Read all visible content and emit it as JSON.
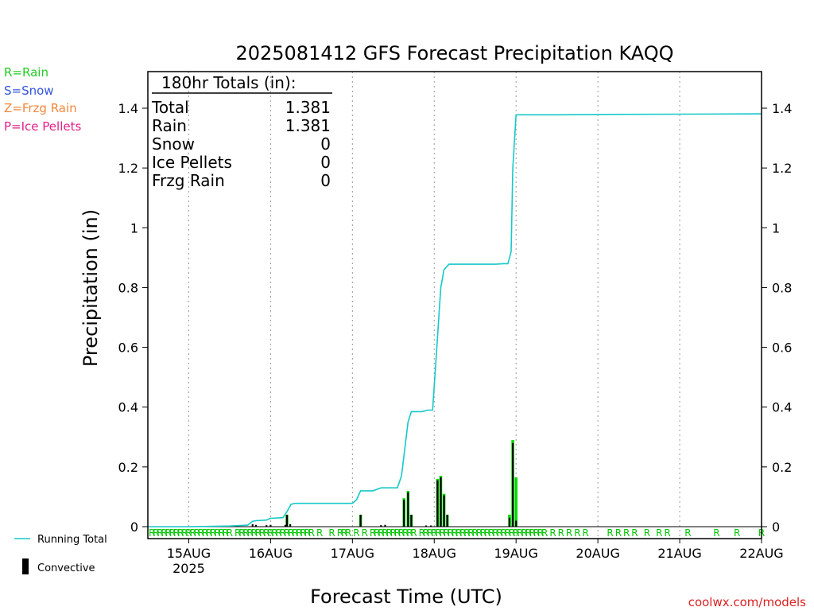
{
  "chart_data": {
    "type": "bar",
    "title": "2025081412 GFS Forecast Precipitation KAQQ",
    "xlabel": "Forecast Time (UTC)",
    "ylabel": "Precipitation (in)",
    "ylim": [
      0,
      1.5
    ],
    "y_ticks": [
      0,
      0.2,
      0.4,
      0.6,
      0.8,
      1,
      1.2,
      1.4
    ],
    "y_tick_labels": [
      "0",
      "0.2",
      "0.4",
      "0.6",
      "0.8",
      "1",
      "1.2",
      "1.4"
    ],
    "x_range_days": [
      14.5,
      22.0
    ],
    "x_ticks": [
      {
        "day": 15,
        "label": "15AUG",
        "sublabel": "2025"
      },
      {
        "day": 16,
        "label": "16AUG",
        "sublabel": ""
      },
      {
        "day": 17,
        "label": "17AUG",
        "sublabel": ""
      },
      {
        "day": 18,
        "label": "18AUG",
        "sublabel": ""
      },
      {
        "day": 19,
        "label": "19AUG",
        "sublabel": ""
      },
      {
        "day": 20,
        "label": "20AUG",
        "sublabel": ""
      },
      {
        "day": 21,
        "label": "21AUG",
        "sublabel": ""
      },
      {
        "day": 22,
        "label": "22AUG",
        "sublabel": ""
      }
    ],
    "grid": "vertical-dotted",
    "legend_position": "left",
    "series": [
      {
        "name": "Running Total",
        "type": "line",
        "color": "#17c8c8",
        "points": [
          [
            14.5,
            0
          ],
          [
            15.0,
            0
          ],
          [
            15.5,
            0.002
          ],
          [
            15.72,
            0.005
          ],
          [
            15.78,
            0.018
          ],
          [
            15.82,
            0.02
          ],
          [
            15.95,
            0.022
          ],
          [
            16.0,
            0.028
          ],
          [
            16.15,
            0.03
          ],
          [
            16.2,
            0.05
          ],
          [
            16.25,
            0.075
          ],
          [
            16.3,
            0.078
          ],
          [
            17.0,
            0.078
          ],
          [
            17.05,
            0.09
          ],
          [
            17.1,
            0.12
          ],
          [
            17.25,
            0.12
          ],
          [
            17.35,
            0.13
          ],
          [
            17.55,
            0.13
          ],
          [
            17.6,
            0.17
          ],
          [
            17.68,
            0.35
          ],
          [
            17.72,
            0.385
          ],
          [
            17.85,
            0.385
          ],
          [
            17.92,
            0.39
          ],
          [
            17.98,
            0.39
          ],
          [
            18.02,
            0.55
          ],
          [
            18.08,
            0.8
          ],
          [
            18.12,
            0.86
          ],
          [
            18.18,
            0.878
          ],
          [
            18.75,
            0.878
          ],
          [
            18.85,
            0.88
          ],
          [
            18.9,
            0.88
          ],
          [
            18.94,
            0.92
          ],
          [
            18.96,
            1.2
          ],
          [
            19.0,
            1.378
          ],
          [
            19.5,
            1.378
          ],
          [
            20.0,
            1.379
          ],
          [
            21.0,
            1.38
          ],
          [
            22.0,
            1.381
          ]
        ]
      },
      {
        "name": "Precipitation",
        "type": "bar",
        "color": "#00d800",
        "bars": [
          {
            "x": 16.2,
            "value": 0.04
          },
          {
            "x": 17.1,
            "value": 0.04
          },
          {
            "x": 17.63,
            "value": 0.095
          },
          {
            "x": 17.68,
            "value": 0.12
          },
          {
            "x": 17.72,
            "value": 0.04
          },
          {
            "x": 18.04,
            "value": 0.16
          },
          {
            "x": 18.08,
            "value": 0.17
          },
          {
            "x": 18.12,
            "value": 0.11
          },
          {
            "x": 18.16,
            "value": 0.04
          },
          {
            "x": 18.92,
            "value": 0.04
          },
          {
            "x": 18.96,
            "value": 0.29
          },
          {
            "x": 19.0,
            "value": 0.165
          }
        ]
      },
      {
        "name": "Convective",
        "type": "bar",
        "color": "#000000",
        "bars": [
          {
            "x": 15.78,
            "value": 0.008
          },
          {
            "x": 15.82,
            "value": 0.006
          },
          {
            "x": 15.95,
            "value": 0.005
          },
          {
            "x": 16.0,
            "value": 0.006
          },
          {
            "x": 16.18,
            "value": 0.006
          },
          {
            "x": 16.2,
            "value": 0.04
          },
          {
            "x": 16.24,
            "value": 0.008
          },
          {
            "x": 17.1,
            "value": 0.04
          },
          {
            "x": 17.35,
            "value": 0.005
          },
          {
            "x": 17.4,
            "value": 0.006
          },
          {
            "x": 17.63,
            "value": 0.09
          },
          {
            "x": 17.68,
            "value": 0.115
          },
          {
            "x": 17.72,
            "value": 0.04
          },
          {
            "x": 17.9,
            "value": 0.004
          },
          {
            "x": 17.96,
            "value": 0.004
          },
          {
            "x": 18.04,
            "value": 0.155
          },
          {
            "x": 18.08,
            "value": 0.165
          },
          {
            "x": 18.12,
            "value": 0.105
          },
          {
            "x": 18.16,
            "value": 0.04
          },
          {
            "x": 18.92,
            "value": 0.03
          },
          {
            "x": 18.96,
            "value": 0.28
          },
          {
            "x": 19.0,
            "value": 0.02
          }
        ]
      }
    ],
    "precip_type_markers": {
      "symbol": "R",
      "color": "#00c800",
      "x": [
        14.55,
        14.6,
        14.65,
        14.7,
        14.75,
        14.8,
        14.85,
        14.9,
        14.95,
        15.0,
        15.05,
        15.1,
        15.15,
        15.2,
        15.25,
        15.3,
        15.35,
        15.4,
        15.45,
        15.5,
        15.6,
        15.65,
        15.7,
        15.75,
        15.8,
        15.85,
        15.9,
        15.95,
        16.0,
        16.05,
        16.1,
        16.15,
        16.2,
        16.25,
        16.3,
        16.35,
        16.4,
        16.45,
        16.5,
        16.6,
        16.75,
        16.85,
        16.9,
        16.95,
        17.05,
        17.15,
        17.25,
        17.3,
        17.35,
        17.4,
        17.45,
        17.5,
        17.55,
        17.6,
        17.65,
        17.7,
        17.75,
        17.85,
        17.9,
        17.95,
        18.0,
        18.05,
        18.1,
        18.15,
        18.2,
        18.25,
        18.3,
        18.35,
        18.4,
        18.45,
        18.5,
        18.55,
        18.6,
        18.65,
        18.7,
        18.75,
        18.8,
        18.85,
        18.9,
        18.95,
        19.0,
        19.05,
        19.1,
        19.15,
        19.2,
        19.25,
        19.3,
        19.35,
        19.45,
        19.55,
        19.65,
        19.75,
        19.85,
        20.15,
        20.25,
        20.35,
        20.45,
        20.6,
        20.75,
        20.85,
        21.1,
        21.45,
        21.7,
        22.0
      ]
    },
    "totals_box": {
      "heading": "180hr Totals (in):",
      "rows": [
        {
          "label": "Total",
          "value": "1.381"
        },
        {
          "label": "Rain",
          "value": "1.381"
        },
        {
          "label": "Snow",
          "value": "0"
        },
        {
          "label": "Ice Pellets",
          "value": "0"
        },
        {
          "label": "Frzg Rain",
          "value": "0"
        }
      ]
    }
  },
  "type_legend": [
    {
      "text": "R=Rain",
      "color": "#22cc22"
    },
    {
      "text": "S=Snow",
      "color": "#3355dd"
    },
    {
      "text": "Z=Frzg Rain",
      "color": "#f0883c"
    },
    {
      "text": "P=Ice Pellets",
      "color": "#e0208a"
    }
  ],
  "series_legend": [
    {
      "text": "Running Total",
      "color": "#17c8c8"
    },
    {
      "text": "Convective",
      "color": "#000000"
    }
  ],
  "credit": {
    "text": "coolwx.com/models",
    "color": "#dd2222"
  }
}
